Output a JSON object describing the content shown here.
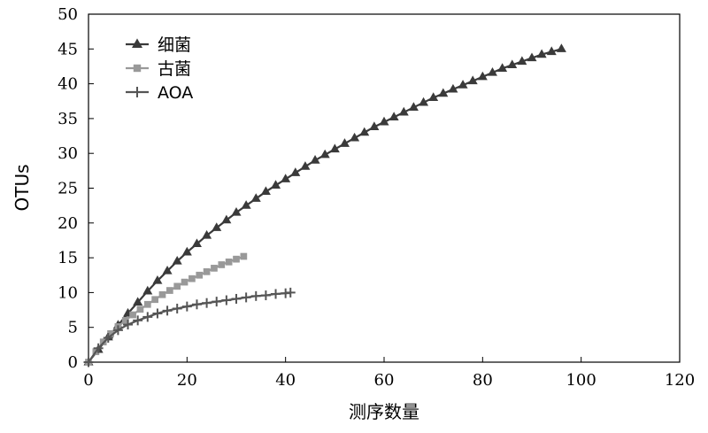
{
  "chart_data": {
    "type": "line",
    "xlabel": "测序数量",
    "ylabel": "OTUs",
    "xlim": [
      0,
      120
    ],
    "ylim": [
      0,
      50
    ],
    "xticks": [
      0,
      20,
      40,
      60,
      80,
      100,
      120
    ],
    "yticks": [
      0,
      5,
      10,
      15,
      20,
      25,
      30,
      35,
      40,
      45,
      50
    ],
    "grid": false,
    "legend_position": "top-left",
    "series": [
      {
        "name": "细菌",
        "marker": "triangle",
        "color": "#3a3a3a",
        "x": [
          0,
          2,
          4,
          6,
          8,
          10,
          12,
          14,
          16,
          18,
          20,
          22,
          24,
          26,
          28,
          30,
          32,
          34,
          36,
          38,
          40,
          42,
          44,
          46,
          48,
          50,
          52,
          54,
          56,
          58,
          60,
          62,
          64,
          66,
          68,
          70,
          72,
          74,
          76,
          78,
          80,
          82,
          84,
          86,
          88,
          90,
          92,
          94,
          96
        ],
        "y": [
          0,
          1.8,
          3.6,
          5.3,
          7.0,
          8.6,
          10.2,
          11.7,
          13.1,
          14.5,
          15.8,
          17.0,
          18.2,
          19.3,
          20.4,
          21.5,
          22.5,
          23.5,
          24.5,
          25.4,
          26.3,
          27.2,
          28.1,
          29.0,
          29.8,
          30.6,
          31.4,
          32.2,
          33.0,
          33.8,
          34.5,
          35.2,
          35.9,
          36.6,
          37.3,
          38.0,
          38.6,
          39.2,
          39.8,
          40.4,
          41.0,
          41.6,
          42.2,
          42.7,
          43.2,
          43.7,
          44.2,
          44.6,
          45.0
        ]
      },
      {
        "name": "古菌",
        "marker": "square",
        "color": "#999999",
        "x": [
          0,
          1.5,
          3,
          4.5,
          6,
          7.5,
          9,
          10.5,
          12,
          13.5,
          15,
          16.5,
          18,
          19.5,
          21,
          22.5,
          24,
          25.5,
          27,
          28.5,
          30,
          31.5
        ],
        "y": [
          0,
          1.5,
          2.9,
          4.1,
          5.1,
          6.0,
          6.8,
          7.6,
          8.3,
          9.0,
          9.7,
          10.3,
          10.9,
          11.5,
          12.0,
          12.5,
          13.0,
          13.5,
          14.0,
          14.4,
          14.8,
          15.2
        ]
      },
      {
        "name": "AOA",
        "marker": "plus",
        "color": "#555555",
        "x": [
          0,
          2,
          4,
          6,
          8,
          10,
          12,
          14,
          16,
          18,
          20,
          22,
          24,
          26,
          28,
          30,
          32,
          34,
          36,
          38,
          40,
          41
        ],
        "y": [
          0,
          2.0,
          3.5,
          4.6,
          5.4,
          6.0,
          6.5,
          7.0,
          7.4,
          7.7,
          8.0,
          8.3,
          8.5,
          8.7,
          8.9,
          9.1,
          9.3,
          9.5,
          9.6,
          9.8,
          9.9,
          10.0
        ]
      }
    ]
  }
}
